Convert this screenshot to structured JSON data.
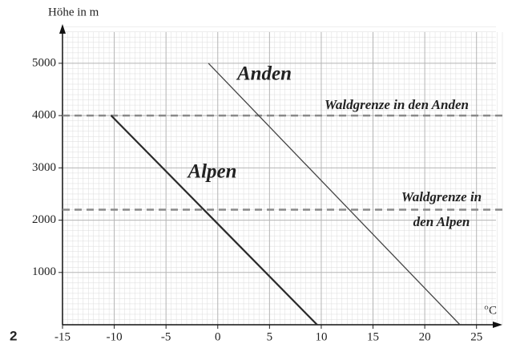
{
  "chart_data": {
    "type": "line",
    "figure_label": "2",
    "ylabel": "Höhe in m",
    "xlabel": "°C",
    "xlim": [
      -15,
      27.5
    ],
    "ylim": [
      0,
      5750
    ],
    "xticks": [
      -15,
      -10,
      -5,
      0,
      5,
      10,
      15,
      20,
      25
    ],
    "yticks": [
      1000,
      2000,
      3000,
      4000,
      5000
    ],
    "grid": true,
    "series": [
      {
        "name": "Alpen",
        "color": "#2a2a2a",
        "x": [
          -10.3,
          9.6
        ],
        "values": [
          4000,
          0
        ]
      },
      {
        "name": "Anden",
        "color": "#444444",
        "x": [
          -0.9,
          23.4
        ],
        "values": [
          5000,
          0
        ]
      }
    ],
    "reference_lines": [
      {
        "value": 4000,
        "color": "#8a8a8a",
        "label": [
          "Waldgrenze in den Anden"
        ]
      },
      {
        "value": 2200,
        "color": "#8a8a8a",
        "label": [
          "Waldgrenze in",
          "den Alpen"
        ]
      }
    ]
  }
}
